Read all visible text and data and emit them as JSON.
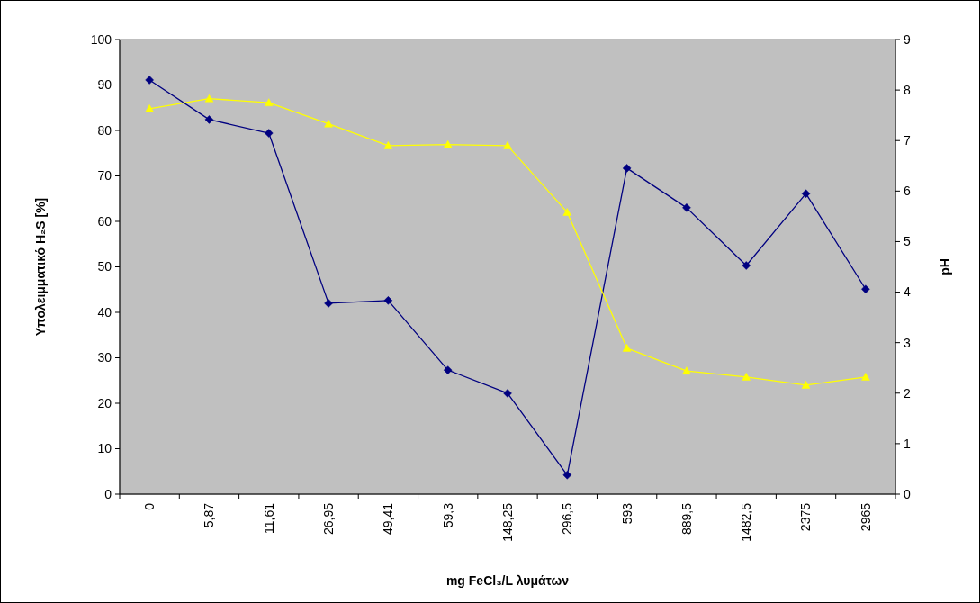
{
  "chart_data": {
    "type": "line",
    "xlabel": "mg FeCl₃/L λυμάτων",
    "ylabel": "Υπολειμματικό H₂S [%]",
    "y2label": "pH",
    "categories": [
      "0",
      "5,87",
      "11,61",
      "26,95",
      "49,41",
      "59,3",
      "148,25",
      "296,5",
      "593",
      "889,5",
      "1482,5",
      "2375",
      "2965"
    ],
    "series": [
      {
        "color": "#000080",
        "marker": "diamond",
        "values": [
          91.1,
          82.4,
          79.4,
          42.0,
          42.6,
          27.3,
          22.2,
          4.2,
          71.7,
          63.0,
          50.3,
          66.1,
          45.1
        ]
      },
      {
        "color": "#ffff00",
        "marker": "triangle",
        "axis": "y2",
        "values": [
          7.63,
          7.83,
          7.75,
          7.33,
          6.9,
          6.92,
          6.9,
          5.58,
          2.89,
          2.44,
          2.32,
          2.16,
          2.32
        ]
      }
    ],
    "ylim": [
      0,
      100
    ],
    "yticks": [
      0,
      10,
      20,
      30,
      40,
      50,
      60,
      70,
      80,
      90,
      100
    ],
    "y2lim": [
      0,
      9
    ],
    "y2ticks": [
      0,
      1,
      2,
      3,
      4,
      5,
      6,
      7,
      8,
      9
    ],
    "grid": false,
    "line_style": "solid"
  }
}
